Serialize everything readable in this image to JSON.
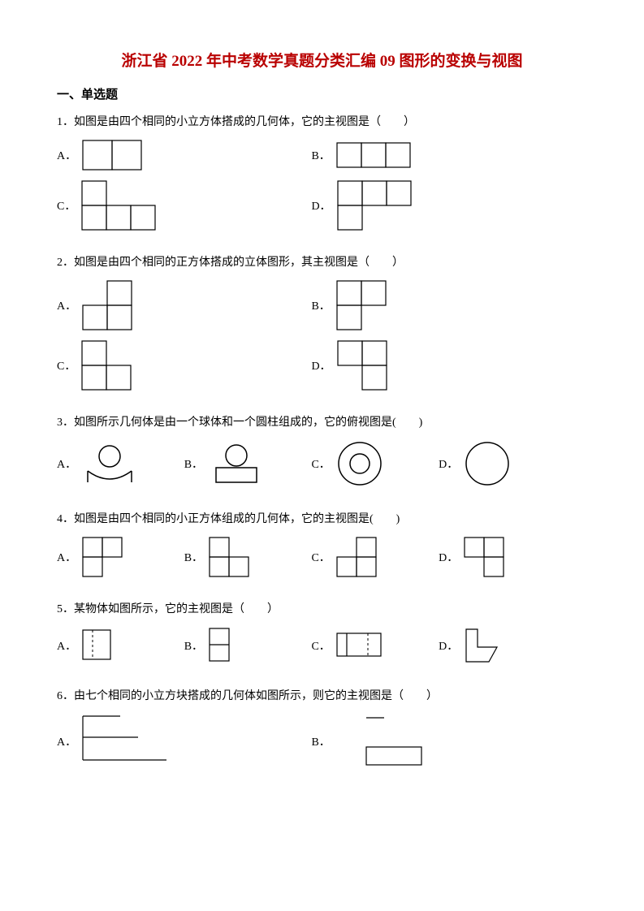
{
  "title": "浙江省 2022 年中考数学真题分类汇编 09 图形的变换与视图",
  "section": "一、单选题",
  "stroke": "#000000",
  "stroke_width": 1.2,
  "unit": 30,
  "circle_stroke_width": 1.5,
  "questions": [
    {
      "num": "1．",
      "text": "如图是由四个相同的小立方体搭成的几何体，它的主视图是（　　）",
      "layout": "two-col",
      "options": [
        {
          "label": "A．",
          "shape": "grid",
          "w": 2,
          "h": 1,
          "cells": [
            [
              0,
              0
            ],
            [
              1,
              0
            ]
          ],
          "scale": 1.2
        },
        {
          "label": "B．",
          "shape": "grid",
          "w": 3,
          "h": 1,
          "cells": [
            [
              0,
              0
            ],
            [
              1,
              0
            ],
            [
              2,
              0
            ]
          ]
        },
        {
          "label": "C．",
          "shape": "grid",
          "w": 3,
          "h": 2,
          "cells": [
            [
              0,
              0
            ],
            [
              0,
              1
            ],
            [
              1,
              1
            ],
            [
              2,
              1
            ]
          ]
        },
        {
          "label": "D．",
          "shape": "grid",
          "w": 3,
          "h": 2,
          "cells": [
            [
              0,
              0
            ],
            [
              1,
              0
            ],
            [
              2,
              0
            ],
            [
              0,
              1
            ]
          ]
        }
      ]
    },
    {
      "num": "2．",
      "text": "如图是由四个相同的正方体搭成的立体图形，其主视图是（　　）",
      "layout": "two-col",
      "options": [
        {
          "label": "A．",
          "shape": "grid",
          "w": 2,
          "h": 2,
          "cells": [
            [
              1,
              0
            ],
            [
              0,
              1
            ],
            [
              1,
              1
            ]
          ]
        },
        {
          "label": "B．",
          "shape": "grid",
          "w": 2,
          "h": 2,
          "cells": [
            [
              0,
              0
            ],
            [
              1,
              0
            ],
            [
              0,
              1
            ]
          ]
        },
        {
          "label": "C．",
          "shape": "grid",
          "w": 2,
          "h": 2,
          "cells": [
            [
              0,
              0
            ],
            [
              0,
              1
            ],
            [
              1,
              1
            ]
          ]
        },
        {
          "label": "D．",
          "shape": "grid",
          "w": 2,
          "h": 2,
          "cells": [
            [
              0,
              0
            ],
            [
              1,
              0
            ],
            [
              1,
              1
            ]
          ]
        }
      ]
    },
    {
      "num": "3．",
      "text": "如图所示几何体是由一个球体和一个圆柱组成的，它的俯视图是(　　)",
      "layout": "four-col",
      "options": [
        {
          "label": "A．",
          "shape": "ball_arc"
        },
        {
          "label": "B．",
          "shape": "ball_rect"
        },
        {
          "label": "C．",
          "shape": "ring"
        },
        {
          "label": "D．",
          "shape": "circle"
        }
      ]
    },
    {
      "num": "4．",
      "text": "如图是由四个相同的小正方体组成的几何体，它的主视图是(　　)",
      "layout": "four-col",
      "u": 24,
      "options": [
        {
          "label": "A．",
          "shape": "grid",
          "w": 2,
          "h": 2,
          "cells": [
            [
              0,
              0
            ],
            [
              1,
              0
            ],
            [
              0,
              1
            ]
          ]
        },
        {
          "label": "B．",
          "shape": "grid",
          "w": 2,
          "h": 2,
          "cells": [
            [
              0,
              0
            ],
            [
              0,
              1
            ],
            [
              1,
              1
            ]
          ]
        },
        {
          "label": "C．",
          "shape": "grid",
          "w": 2,
          "h": 2,
          "cells": [
            [
              1,
              0
            ],
            [
              0,
              1
            ],
            [
              1,
              1
            ]
          ]
        },
        {
          "label": "D．",
          "shape": "grid",
          "w": 2,
          "h": 2,
          "cells": [
            [
              0,
              0
            ],
            [
              1,
              0
            ],
            [
              1,
              1
            ]
          ]
        }
      ]
    },
    {
      "num": "5．",
      "text": "某物体如图所示，它的主视图是（　　）",
      "layout": "four-col",
      "options": [
        {
          "label": "A．",
          "shape": "q5a"
        },
        {
          "label": "B．",
          "shape": "q5b"
        },
        {
          "label": "C．",
          "shape": "q5c"
        },
        {
          "label": "D．",
          "shape": "q5d"
        }
      ]
    },
    {
      "num": "6．",
      "text": "由七个相同的小立方块搭成的几何体如图所示，则它的主视图是（　　）",
      "layout": "two-col",
      "options": [
        {
          "label": "A．",
          "shape": "q6a"
        },
        {
          "label": "B．",
          "shape": "q6b"
        }
      ]
    }
  ]
}
